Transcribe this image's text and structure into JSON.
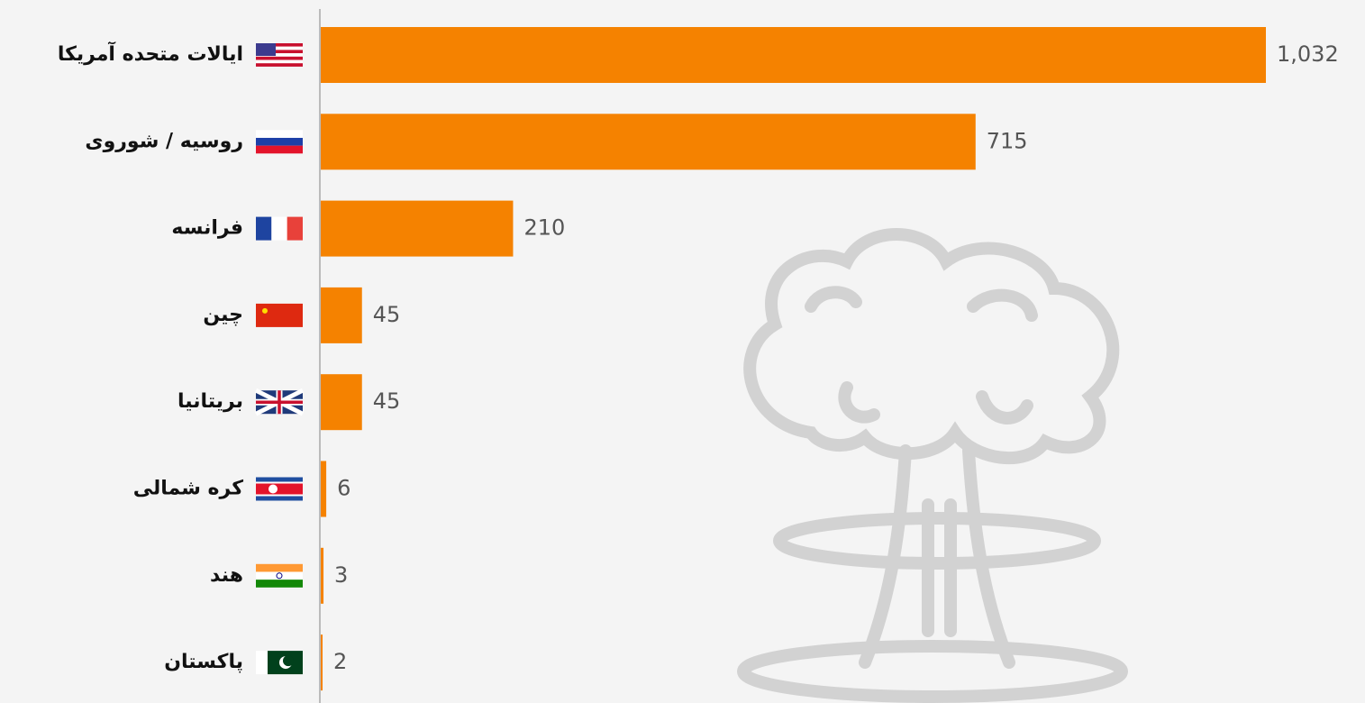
{
  "chart_data": {
    "type": "bar",
    "orientation": "horizontal",
    "categories": [
      "ایالات متحده آمریکا",
      "روسیه / شوروی",
      "فرانسه",
      "چین",
      "بریتانیا",
      "کره شمالی",
      "هند",
      "پاکستان"
    ],
    "values": [
      1032,
      715,
      210,
      45,
      45,
      6,
      3,
      2
    ],
    "value_labels": [
      "1,032",
      "715",
      "210",
      "45",
      "45",
      "6",
      "3",
      "2"
    ],
    "color": "#f58200"
  }
}
